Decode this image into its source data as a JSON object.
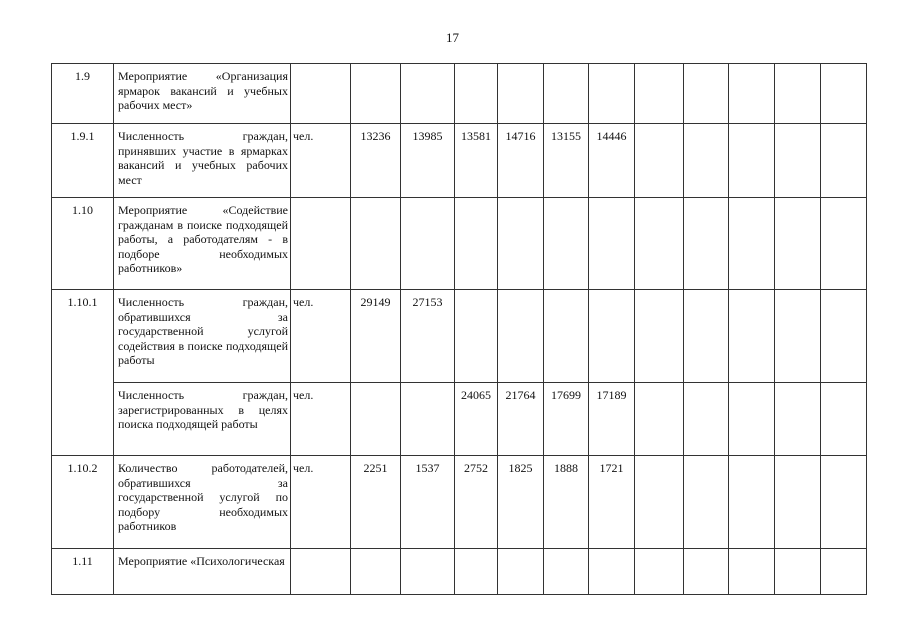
{
  "page_number": "17",
  "rows": [
    {
      "code": "1.9",
      "desc": "Мероприятие «Организация ярмарок вакансий и учебных рабочих мест»",
      "unit": "",
      "values": [
        "",
        "",
        "",
        "",
        "",
        "",
        "",
        "",
        "",
        "",
        "",
        ""
      ]
    },
    {
      "code": "1.9.1",
      "desc": "Численность граждан, принявших участие в ярмарках вакансий и учебных рабочих мест",
      "unit": "чел.",
      "values": [
        "13236",
        "13985",
        "13581",
        "14716",
        "13155",
        "14446",
        "",
        "",
        "",
        "",
        "",
        ""
      ]
    },
    {
      "code": "1.10",
      "desc": "Мероприятие «Содействие гражданам в поиске подходящей работы, а работодателям - в подборе необходимых работников»",
      "unit": "",
      "values": [
        "",
        "",
        "",
        "",
        "",
        "",
        "",
        "",
        "",
        "",
        "",
        ""
      ]
    },
    {
      "code": "1.10.1",
      "desc": "Численность граждан, обратившихся за государственной услугой содействия в поиске подходящей работы",
      "unit": "чел.",
      "values": [
        "29149",
        "27153",
        "",
        "",
        "",
        "",
        "",
        "",
        "",
        "",
        "",
        ""
      ]
    },
    {
      "code": "",
      "desc": "Численность граждан, зарегистрированных в целях поиска подходящей работы",
      "unit": "чел.",
      "values": [
        "",
        "",
        "24065",
        "21764",
        "17699",
        "17189",
        "",
        "",
        "",
        "",
        "",
        ""
      ]
    },
    {
      "code": "1.10.2",
      "desc": "Количество работодателей, обратившихся за государственной услугой по подбору необходимых работников",
      "unit": "чел.",
      "values": [
        "2251",
        "1537",
        "2752",
        "1825",
        "1888",
        "1721",
        "",
        "",
        "",
        "",
        "",
        ""
      ]
    },
    {
      "code": "1.11",
      "desc": "Мероприятие «Психологическая",
      "unit": "",
      "values": [
        "",
        "",
        "",
        "",
        "",
        "",
        "",
        "",
        "",
        "",
        "",
        ""
      ]
    }
  ]
}
